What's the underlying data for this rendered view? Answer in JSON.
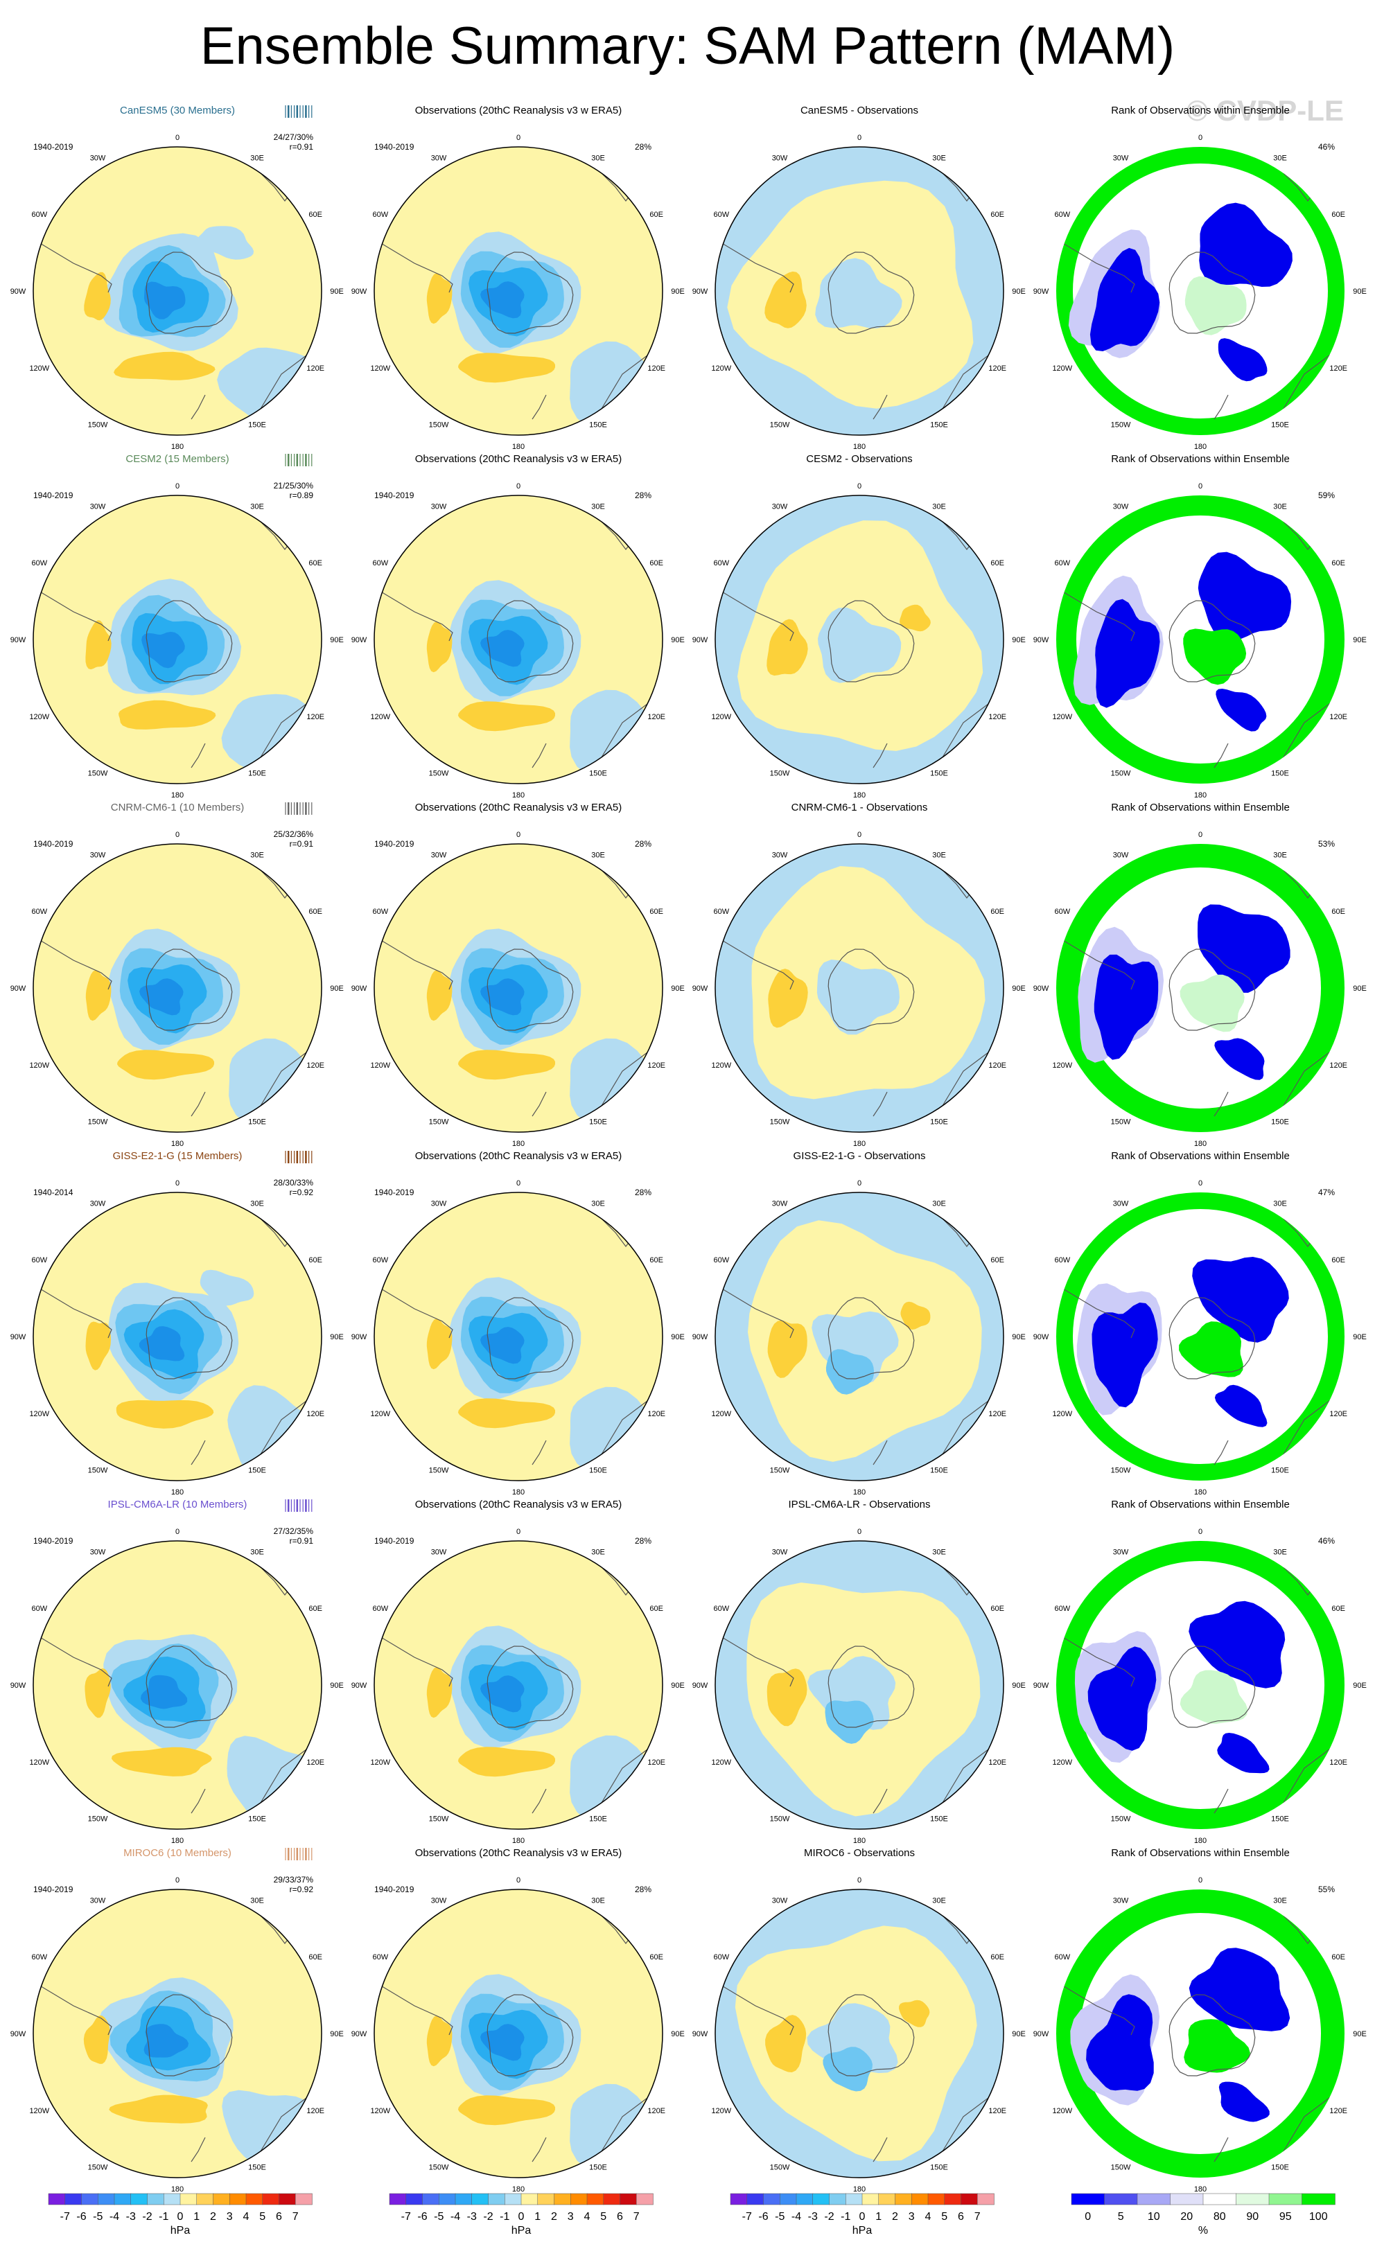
{
  "title": "Ensemble Summary: SAM Pattern (MAM)",
  "watermark": "© CVDP-LE",
  "lon_labels": {
    "top": "0",
    "bottom": "180",
    "left": [
      "30W",
      "60W",
      "90W",
      "120W",
      "150W"
    ],
    "right": [
      "30E",
      "60E",
      "90E",
      "120E",
      "150E"
    ]
  },
  "rows": [
    {
      "model": "CanESM5 (30 Members)",
      "model_color": "#2a6f8f",
      "years": "1940-2019",
      "obs_years": "1940-2019",
      "stats": "24/27/30%",
      "r": "r=0.91",
      "obs_pct": "28%",
      "diff_title": "CanESM5 - Observations",
      "rank_pct": "46%",
      "tick_color": "#2a6f8f"
    },
    {
      "model": "CESM2 (15 Members)",
      "model_color": "#5a8a5a",
      "years": "1940-2019",
      "obs_years": "1940-2019",
      "stats": "21/25/30%",
      "r": "r=0.89",
      "obs_pct": "28%",
      "diff_title": "CESM2 - Observations",
      "rank_pct": "59%",
      "tick_color": "#5a8a5a"
    },
    {
      "model": "CNRM-CM6-1 (10 Members)",
      "model_color": "#666666",
      "years": "1940-2019",
      "obs_years": "1940-2019",
      "stats": "25/32/36%",
      "r": "r=0.91",
      "obs_pct": "28%",
      "diff_title": "CNRM-CM6-1 - Observations",
      "rank_pct": "53%",
      "tick_color": "#666666"
    },
    {
      "model": "GISS-E2-1-G (15 Members)",
      "model_color": "#8b4513",
      "years": "1940-2014",
      "obs_years": "1940-2019",
      "stats": "28/30/33%",
      "r": "r=0.92",
      "obs_pct": "28%",
      "diff_title": "GISS-E2-1-G - Observations",
      "rank_pct": "47%",
      "tick_color": "#8b4513"
    },
    {
      "model": "IPSL-CM6A-LR (10 Members)",
      "model_color": "#6a4fcf",
      "years": "1940-2019",
      "obs_years": "1940-2019",
      "stats": "27/32/35%",
      "r": "r=0.91",
      "obs_pct": "28%",
      "diff_title": "IPSL-CM6A-LR - Observations",
      "rank_pct": "46%",
      "tick_color": "#6a4fcf"
    },
    {
      "model": "MIROC6 (10 Members)",
      "model_color": "#d4956a",
      "years": "1940-2019",
      "obs_years": "1940-2019",
      "stats": "29/33/37%",
      "r": "r=0.92",
      "obs_pct": "28%",
      "diff_title": "MIROC6 - Observations",
      "rank_pct": "55%",
      "tick_color": "#d4956a"
    }
  ],
  "obs_title": "Observations (20thC Reanalysis v3 w ERA5)",
  "rank_title": "Rank of Observations within Ensemble",
  "colorbar_hpa": {
    "labels": [
      "-7",
      "-6",
      "-5",
      "-4",
      "-3",
      "-2",
      "-1",
      "0",
      "1",
      "2",
      "3",
      "4",
      "5",
      "6",
      "7"
    ],
    "unit": "hPa",
    "colors": [
      "#7a1fe0",
      "#3a3af0",
      "#4a6ff5",
      "#3d8ef5",
      "#2fa8f5",
      "#23c0f5",
      "#7fcdf0",
      "#b5e0f5",
      "#fff3a0",
      "#ffd25a",
      "#ffb020",
      "#ff8c00",
      "#ff5a00",
      "#ee2a10",
      "#cc0a10",
      "#f5a0a8"
    ]
  },
  "colorbar_pct": {
    "labels": [
      "0",
      "5",
      "10",
      "20",
      "80",
      "90",
      "95",
      "100"
    ],
    "unit": "%",
    "colors": [
      "#0000ff",
      "#5050f0",
      "#a8a8f5",
      "#e0e0f8",
      "#ffffff",
      "#e0fae0",
      "#90f590",
      "#00ee00"
    ]
  },
  "colors": {
    "neg_light": "#b3dcf2",
    "neg_mid": "#6ec6f2",
    "neg_strong": "#29adf0",
    "neg_deep": "#1a90e8",
    "pos_light": "#fdf5a8",
    "pos_mid": "#fcd13a",
    "rank_low": "#0000ee",
    "rank_lowmid": "#ccccf8",
    "rank_high": "#00ee00",
    "rank_highmid": "#ccf8cc"
  }
}
